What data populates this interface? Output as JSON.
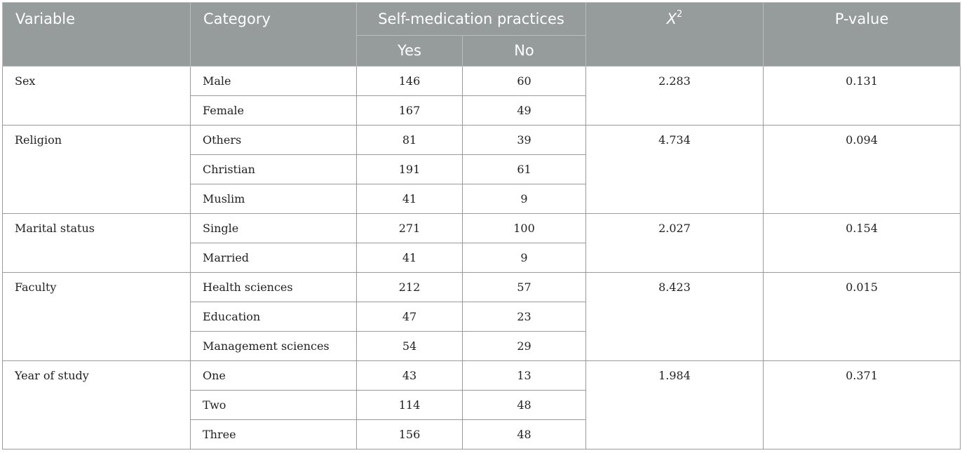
{
  "headers": {
    "variable": "Variable",
    "category": "Category",
    "practices": "Self-medication practices",
    "yes": "Yes",
    "no": "No",
    "chi_base": "X",
    "chi_sup": "2",
    "pvalue": "P-value"
  },
  "groups": [
    {
      "variable": "Sex",
      "chi2": "2.283",
      "p": "0.131",
      "rows": [
        {
          "category": "Male",
          "yes": "146",
          "no": "60"
        },
        {
          "category": "Female",
          "yes": "167",
          "no": "49"
        }
      ]
    },
    {
      "variable": "Religion",
      "chi2": "4.734",
      "p": "0.094",
      "rows": [
        {
          "category": "Others",
          "yes": "81",
          "no": "39"
        },
        {
          "category": "Christian",
          "yes": "191",
          "no": "61"
        },
        {
          "category": "Muslim",
          "yes": "41",
          "no": "9"
        }
      ]
    },
    {
      "variable": "Marital status",
      "chi2": "2.027",
      "p": "0.154",
      "rows": [
        {
          "category": "Single",
          "yes": "271",
          "no": "100"
        },
        {
          "category": "Married",
          "yes": "41",
          "no": "9"
        }
      ]
    },
    {
      "variable": "Faculty",
      "chi2": "8.423",
      "p": "0.015",
      "rows": [
        {
          "category": "Health sciences",
          "yes": "212",
          "no": "57"
        },
        {
          "category": "Education",
          "yes": "47",
          "no": "23"
        },
        {
          "category": "Management sciences",
          "yes": "54",
          "no": "29"
        }
      ]
    },
    {
      "variable": "Year of study",
      "chi2": "1.984",
      "p": "0.371",
      "rows": [
        {
          "category": "One",
          "yes": "43",
          "no": "13"
        },
        {
          "category": "Two",
          "yes": "114",
          "no": "48"
        },
        {
          "category": "Three",
          "yes": "156",
          "no": "48"
        }
      ]
    }
  ]
}
